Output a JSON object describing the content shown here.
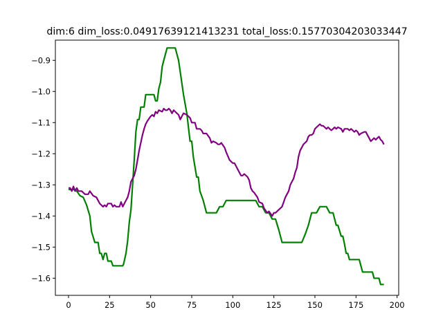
{
  "chart_data": {
    "type": "line",
    "title": "dim:6 dim_loss:0.04917639121413231 total_loss:0.15770304203033447",
    "xlabel": "",
    "ylabel": "",
    "xlim": [
      -8,
      201
    ],
    "ylim": [
      -1.655,
      -0.835
    ],
    "xticks": [
      0,
      25,
      50,
      75,
      100,
      125,
      150,
      175,
      200
    ],
    "xtick_labels": [
      "0",
      "25",
      "50",
      "75",
      "100",
      "125",
      "150",
      "175",
      "200"
    ],
    "yticks": [
      -1.6,
      -1.5,
      -1.4,
      -1.3,
      -1.2,
      -1.1,
      -1.0,
      -0.9
    ],
    "ytick_labels": [
      "−1.6",
      "−1.5",
      "−1.4",
      "−1.3",
      "−1.2",
      "−1.1",
      "−1.0",
      "−0.9"
    ],
    "grid": false,
    "series": [
      {
        "color": "#008000",
        "values": [
          [
            0,
            -1.315
          ],
          [
            3,
            -1.315
          ],
          [
            5,
            -1.32
          ],
          [
            7,
            -1.335
          ],
          [
            9,
            -1.34
          ],
          [
            11,
            -1.365
          ],
          [
            13,
            -1.4
          ],
          [
            14,
            -1.45
          ],
          [
            16,
            -1.485
          ],
          [
            18,
            -1.485
          ],
          [
            19,
            -1.52
          ],
          [
            20,
            -1.52
          ],
          [
            21,
            -1.54
          ],
          [
            22,
            -1.52
          ],
          [
            23,
            -1.52
          ],
          [
            24,
            -1.545
          ],
          [
            26,
            -1.545
          ],
          [
            27,
            -1.56
          ],
          [
            33,
            -1.56
          ],
          [
            33.5,
            -1.555
          ],
          [
            35,
            -1.52
          ],
          [
            36,
            -1.48
          ],
          [
            37,
            -1.42
          ],
          [
            38,
            -1.38
          ],
          [
            40,
            -1.22
          ],
          [
            41,
            -1.13
          ],
          [
            42,
            -1.09
          ],
          [
            43,
            -1.09
          ],
          [
            44,
            -1.05
          ],
          [
            46,
            -1.05
          ],
          [
            47,
            -1.01
          ],
          [
            52,
            -1.01
          ],
          [
            53,
            -1.03
          ],
          [
            54,
            -1.03
          ],
          [
            55,
            -0.99
          ],
          [
            56,
            -0.97
          ],
          [
            57,
            -0.92
          ],
          [
            58,
            -0.9
          ],
          [
            60,
            -0.86
          ],
          [
            65,
            -0.86
          ],
          [
            67,
            -0.9
          ],
          [
            70,
            -1.01
          ],
          [
            72,
            -1.07
          ],
          [
            74,
            -1.16
          ],
          [
            75,
            -1.16
          ],
          [
            76,
            -1.21
          ],
          [
            78,
            -1.275
          ],
          [
            79,
            -1.275
          ],
          [
            80,
            -1.32
          ],
          [
            82,
            -1.35
          ],
          [
            84,
            -1.39
          ],
          [
            90,
            -1.39
          ],
          [
            92,
            -1.37
          ],
          [
            94,
            -1.37
          ],
          [
            96,
            -1.35
          ],
          [
            114,
            -1.35
          ],
          [
            116,
            -1.37
          ],
          [
            118,
            -1.37
          ],
          [
            120,
            -1.39
          ],
          [
            122,
            -1.39
          ],
          [
            124,
            -1.41
          ],
          [
            126,
            -1.41
          ],
          [
            128,
            -1.445
          ],
          [
            130,
            -1.485
          ],
          [
            142,
            -1.485
          ],
          [
            144,
            -1.46
          ],
          [
            146,
            -1.43
          ],
          [
            148,
            -1.39
          ],
          [
            151,
            -1.39
          ],
          [
            153,
            -1.37
          ],
          [
            157,
            -1.37
          ],
          [
            159,
            -1.39
          ],
          [
            161,
            -1.39
          ],
          [
            163,
            -1.43
          ],
          [
            164,
            -1.43
          ],
          [
            166,
            -1.465
          ],
          [
            167,
            -1.465
          ],
          [
            168,
            -1.49
          ],
          [
            169,
            -1.52
          ],
          [
            170,
            -1.52
          ],
          [
            171,
            -1.54
          ],
          [
            177,
            -1.54
          ],
          [
            178,
            -1.56
          ],
          [
            179,
            -1.58
          ],
          [
            185,
            -1.58
          ],
          [
            186,
            -1.6
          ],
          [
            189,
            -1.6
          ],
          [
            190,
            -1.62
          ],
          [
            192,
            -1.62
          ]
        ]
      },
      {
        "color": "#800080",
        "values": [
          [
            0,
            -1.31
          ],
          [
            1,
            -1.31
          ],
          [
            2,
            -1.32
          ],
          [
            3,
            -1.305
          ],
          [
            4,
            -1.32
          ],
          [
            5,
            -1.31
          ],
          [
            6,
            -1.32
          ],
          [
            8,
            -1.32
          ],
          [
            10,
            -1.33
          ],
          [
            12,
            -1.33
          ],
          [
            13,
            -1.32
          ],
          [
            15,
            -1.335
          ],
          [
            17,
            -1.34
          ],
          [
            19,
            -1.36
          ],
          [
            21,
            -1.37
          ],
          [
            22,
            -1.365
          ],
          [
            23,
            -1.37
          ],
          [
            24,
            -1.36
          ],
          [
            26,
            -1.36
          ],
          [
            27,
            -1.37
          ],
          [
            28,
            -1.365
          ],
          [
            29,
            -1.37
          ],
          [
            31,
            -1.37
          ],
          [
            32,
            -1.355
          ],
          [
            33,
            -1.37
          ],
          [
            35,
            -1.35
          ],
          [
            36,
            -1.34
          ],
          [
            37,
            -1.32
          ],
          [
            38,
            -1.29
          ],
          [
            40,
            -1.27
          ],
          [
            41,
            -1.25
          ],
          [
            42,
            -1.22
          ],
          [
            43,
            -1.19
          ],
          [
            44,
            -1.165
          ],
          [
            45,
            -1.14
          ],
          [
            46,
            -1.12
          ],
          [
            47,
            -1.105
          ],
          [
            48,
            -1.095
          ],
          [
            50,
            -1.08
          ],
          [
            51,
            -1.075
          ],
          [
            52,
            -1.08
          ],
          [
            53,
            -1.065
          ],
          [
            54,
            -1.07
          ],
          [
            55,
            -1.06
          ],
          [
            57,
            -1.065
          ],
          [
            58,
            -1.055
          ],
          [
            59,
            -1.06
          ],
          [
            60,
            -1.06
          ],
          [
            61,
            -1.055
          ],
          [
            62,
            -1.06
          ],
          [
            63,
            -1.07
          ],
          [
            64,
            -1.06
          ],
          [
            65,
            -1.065
          ],
          [
            66,
            -1.07
          ],
          [
            67,
            -1.075
          ],
          [
            68,
            -1.09
          ],
          [
            69,
            -1.08
          ],
          [
            70,
            -1.07
          ],
          [
            72,
            -1.075
          ],
          [
            74,
            -1.085
          ],
          [
            75,
            -1.1
          ],
          [
            77,
            -1.1
          ],
          [
            78,
            -1.12
          ],
          [
            80,
            -1.12
          ],
          [
            81,
            -1.125
          ],
          [
            82,
            -1.135
          ],
          [
            84,
            -1.135
          ],
          [
            86,
            -1.15
          ],
          [
            87,
            -1.165
          ],
          [
            88,
            -1.16
          ],
          [
            90,
            -1.165
          ],
          [
            91,
            -1.17
          ],
          [
            92,
            -1.17
          ],
          [
            93,
            -1.165
          ],
          [
            95,
            -1.18
          ],
          [
            96,
            -1.195
          ],
          [
            98,
            -1.22
          ],
          [
            100,
            -1.23
          ],
          [
            101,
            -1.23
          ],
          [
            103,
            -1.25
          ],
          [
            105,
            -1.27
          ],
          [
            106,
            -1.27
          ],
          [
            107,
            -1.265
          ],
          [
            109,
            -1.275
          ],
          [
            110,
            -1.285
          ],
          [
            111,
            -1.31
          ],
          [
            112,
            -1.32
          ],
          [
            113,
            -1.325
          ],
          [
            115,
            -1.34
          ],
          [
            116,
            -1.355
          ],
          [
            118,
            -1.36
          ],
          [
            119,
            -1.375
          ],
          [
            121,
            -1.39
          ],
          [
            122,
            -1.385
          ],
          [
            124,
            -1.4
          ],
          [
            125,
            -1.39
          ],
          [
            126,
            -1.39
          ],
          [
            128,
            -1.38
          ],
          [
            130,
            -1.37
          ],
          [
            131,
            -1.355
          ],
          [
            132,
            -1.34
          ],
          [
            133,
            -1.33
          ],
          [
            134,
            -1.32
          ],
          [
            135,
            -1.3
          ],
          [
            136,
            -1.29
          ],
          [
            137,
            -1.28
          ],
          [
            138,
            -1.26
          ],
          [
            139,
            -1.245
          ],
          [
            140,
            -1.21
          ],
          [
            141,
            -1.19
          ],
          [
            142,
            -1.18
          ],
          [
            143,
            -1.17
          ],
          [
            145,
            -1.16
          ],
          [
            146,
            -1.145
          ],
          [
            147,
            -1.14
          ],
          [
            148,
            -1.14
          ],
          [
            149,
            -1.135
          ],
          [
            150,
            -1.12
          ],
          [
            151,
            -1.115
          ],
          [
            152,
            -1.11
          ],
          [
            153,
            -1.105
          ],
          [
            154,
            -1.11
          ],
          [
            155,
            -1.11
          ],
          [
            156,
            -1.115
          ],
          [
            157,
            -1.12
          ],
          [
            158,
            -1.115
          ],
          [
            159,
            -1.12
          ],
          [
            160,
            -1.125
          ],
          [
            161,
            -1.12
          ],
          [
            162,
            -1.115
          ],
          [
            163,
            -1.12
          ],
          [
            164,
            -1.115
          ],
          [
            166,
            -1.12
          ],
          [
            167,
            -1.13
          ],
          [
            168,
            -1.12
          ],
          [
            170,
            -1.12
          ],
          [
            171,
            -1.125
          ],
          [
            172,
            -1.12
          ],
          [
            173,
            -1.125
          ],
          [
            174,
            -1.13
          ],
          [
            175,
            -1.125
          ],
          [
            176,
            -1.13
          ],
          [
            177,
            -1.14
          ],
          [
            178,
            -1.135
          ],
          [
            180,
            -1.13
          ],
          [
            181,
            -1.13
          ],
          [
            182,
            -1.14
          ],
          [
            183,
            -1.15
          ],
          [
            184,
            -1.16
          ],
          [
            185,
            -1.155
          ],
          [
            186,
            -1.15
          ],
          [
            187,
            -1.155
          ],
          [
            188,
            -1.15
          ],
          [
            189,
            -1.145
          ],
          [
            190,
            -1.155
          ],
          [
            191,
            -1.16
          ],
          [
            192,
            -1.17
          ]
        ]
      }
    ]
  }
}
